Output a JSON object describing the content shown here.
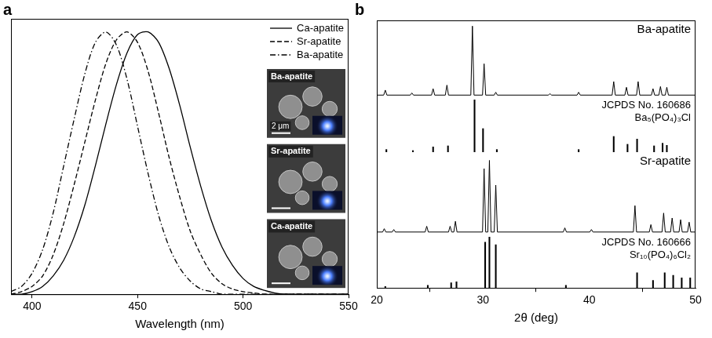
{
  "chart_data": [
    {
      "panel": "a",
      "type": "line",
      "x_label": "Wavelength (nm)",
      "xlim": [
        390,
        550
      ],
      "xticks": [
        400,
        450,
        500,
        550
      ],
      "ylim": [
        0,
        1.05
      ],
      "tick_labels": "x",
      "legend": "upper right",
      "x": [
        390,
        395,
        400,
        405,
        410,
        415,
        420,
        425,
        430,
        435,
        440,
        445,
        450,
        455,
        460,
        465,
        470,
        475,
        480,
        485,
        490,
        495,
        500,
        505,
        510,
        515,
        520,
        525,
        530,
        535,
        540,
        545,
        550
      ],
      "series": [
        {
          "name": "Ca-apatite",
          "color": "#000000",
          "line_style": "solid",
          "values": [
            0,
            0,
            0.01,
            0.03,
            0.07,
            0.13,
            0.22,
            0.34,
            0.49,
            0.65,
            0.8,
            0.92,
            0.99,
            1.0,
            0.96,
            0.86,
            0.72,
            0.56,
            0.41,
            0.28,
            0.18,
            0.11,
            0.06,
            0.03,
            0.015,
            0.005,
            0,
            0,
            0,
            0,
            0,
            0,
            0
          ]
        },
        {
          "name": "Sr-apatite",
          "color": "#000000",
          "line_style": "dashed",
          "values": [
            0,
            0.01,
            0.03,
            0.07,
            0.15,
            0.27,
            0.42,
            0.58,
            0.74,
            0.88,
            0.97,
            1.0,
            0.96,
            0.85,
            0.69,
            0.52,
            0.37,
            0.24,
            0.15,
            0.08,
            0.04,
            0.02,
            0.01,
            0.005,
            0,
            0,
            0,
            0,
            0,
            0,
            0,
            0,
            0
          ]
        },
        {
          "name": "Ba-apatite",
          "color": "#000000",
          "line_style": "dashdot",
          "values": [
            0.01,
            0.03,
            0.08,
            0.17,
            0.31,
            0.49,
            0.67,
            0.84,
            0.96,
            1.0,
            0.95,
            0.82,
            0.64,
            0.46,
            0.3,
            0.18,
            0.1,
            0.05,
            0.02,
            0.01,
            0,
            0,
            0,
            0,
            0,
            0,
            0,
            0,
            0,
            0,
            0,
            0,
            0
          ]
        }
      ],
      "insets": [
        {
          "label": "Ba-apatite",
          "scale_bar": "2 μm"
        },
        {
          "label": "Sr-apatite"
        },
        {
          "label": "Ca-apatite"
        }
      ]
    },
    {
      "panel": "b",
      "type": "line",
      "x_label": "2θ (deg)",
      "xlim": [
        20,
        50
      ],
      "xticks": [
        20,
        30,
        40,
        50
      ],
      "tick_labels": "x",
      "subplots": [
        {
          "type": "line",
          "ylim": [
            0,
            1.08
          ],
          "series": [
            {
              "name": "Ba-apatite",
              "color": "#000000",
              "x": [
                20,
                20.65,
                20.8,
                20.95,
                23.15,
                23.3,
                23.45,
                25.15,
                25.3,
                25.45,
                26.45,
                26.6,
                26.75,
                28.85,
                29.0,
                29.15,
                29.95,
                30.1,
                30.25,
                31.05,
                31.2,
                31.35,
                36.15,
                36.3,
                36.45,
                38.85,
                39.0,
                39.15,
                42.15,
                42.3,
                42.45,
                43.35,
                43.5,
                43.65,
                44.45,
                44.6,
                44.75,
                45.85,
                46.0,
                46.15,
                46.55,
                46.7,
                46.85,
                47.15,
                47.3,
                47.45,
                50
              ],
              "values": [
                0.03,
                0.03,
                0.1,
                0.03,
                0.03,
                0.06,
                0.03,
                0.03,
                0.12,
                0.03,
                0.03,
                0.17,
                0.03,
                0.03,
                1.0,
                0.03,
                0.03,
                0.47,
                0.03,
                0.03,
                0.07,
                0.03,
                0.03,
                0.05,
                0.03,
                0.03,
                0.07,
                0.03,
                0.03,
                0.22,
                0.03,
                0.03,
                0.14,
                0.03,
                0.03,
                0.22,
                0.03,
                0.03,
                0.12,
                0.03,
                0.03,
                0.15,
                0.03,
                0.03,
                0.14,
                0.03,
                0.03
              ]
            }
          ]
        },
        {
          "type": "bar",
          "ylim": [
            0,
            1.05
          ],
          "series": [
            {
              "name": "JCPDS No. 160686",
              "phase": "Ba₅(PO₄)₃Cl",
              "color": "#000000",
              "x": [
                20.9,
                23.4,
                25.3,
                26.7,
                29.2,
                30.0,
                31.3,
                39.0,
                42.3,
                43.6,
                44.5,
                46.1,
                46.9,
                47.3
              ],
              "values": [
                0.05,
                0.03,
                0.1,
                0.12,
                1.0,
                0.45,
                0.05,
                0.05,
                0.3,
                0.15,
                0.25,
                0.12,
                0.17,
                0.13
              ]
            }
          ]
        },
        {
          "type": "line",
          "ylim": [
            0,
            1.0
          ],
          "series": [
            {
              "name": "Sr-apatite",
              "color": "#000000",
              "x": [
                20,
                20.55,
                20.7,
                20.85,
                21.45,
                21.6,
                21.75,
                24.55,
                24.7,
                24.85,
                26.75,
                26.9,
                27.05,
                27.25,
                27.4,
                27.55,
                29.95,
                30.1,
                30.25,
                30.45,
                30.6,
                30.75,
                31.05,
                31.2,
                31.35,
                37.55,
                37.7,
                37.85,
                40.05,
                40.2,
                40.35,
                44.15,
                44.3,
                44.45,
                45.65,
                45.8,
                45.95,
                46.85,
                47.0,
                47.15,
                47.65,
                47.8,
                47.95,
                48.45,
                48.6,
                48.75,
                49.25,
                49.4,
                49.55,
                50
              ],
              "values": [
                0.03,
                0.03,
                0.07,
                0.03,
                0.03,
                0.06,
                0.03,
                0.03,
                0.1,
                0.03,
                0.03,
                0.1,
                0.03,
                0.03,
                0.16,
                0.03,
                0.03,
                0.8,
                0.03,
                0.03,
                0.9,
                0.03,
                0.03,
                0.6,
                0.03,
                0.03,
                0.08,
                0.03,
                0.03,
                0.06,
                0.03,
                0.03,
                0.35,
                0.03,
                0.03,
                0.12,
                0.03,
                0.03,
                0.26,
                0.03,
                0.03,
                0.2,
                0.03,
                0.03,
                0.18,
                0.03,
                0.03,
                0.15,
                0.03,
                0.03
              ]
            }
          ]
        },
        {
          "type": "bar",
          "ylim": [
            0,
            1.05
          ],
          "series": [
            {
              "name": "JCPDS No. 160666",
              "phase": "Sr₁₀(PO₄)₆Cl₂",
              "color": "#000000",
              "x": [
                20.8,
                24.8,
                27.0,
                27.5,
                30.2,
                30.6,
                31.2,
                37.8,
                44.5,
                46.0,
                47.1,
                47.9,
                48.7,
                49.5
              ],
              "values": [
                0.03,
                0.05,
                0.1,
                0.12,
                0.9,
                1.0,
                0.85,
                0.05,
                0.3,
                0.15,
                0.3,
                0.25,
                0.2,
                0.2
              ]
            }
          ]
        }
      ]
    }
  ]
}
